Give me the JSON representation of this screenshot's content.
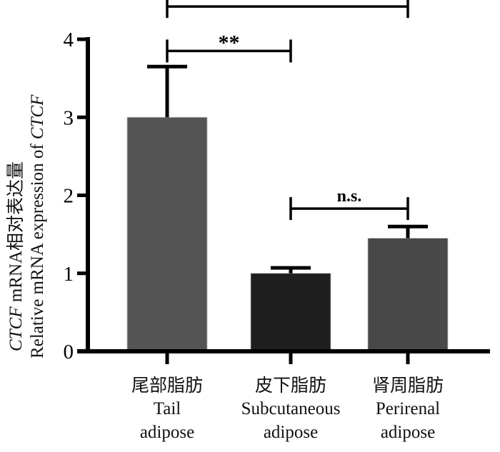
{
  "chart_data": {
    "type": "bar",
    "title": "",
    "ylabel_line1_italic": "CTCF",
    "ylabel_line1_rest": " mRNA相对表达量",
    "ylabel_line2_plain": "Relative mRNA expression of ",
    "ylabel_line2_italic": "CTCF",
    "xlabel": "",
    "ylim": [
      0,
      4
    ],
    "yticks": [
      0,
      1,
      2,
      3,
      4
    ],
    "grid": false,
    "categories": [
      {
        "zh": "尾部脂肪",
        "en1": "Tail",
        "en2": "adipose"
      },
      {
        "zh": "皮下脂肪",
        "en1": "Subcutaneous",
        "en2": "adipose"
      },
      {
        "zh": "肾周脂肪",
        "en1": "Perirenal",
        "en2": "adipose"
      }
    ],
    "values": [
      3.0,
      1.0,
      1.45
    ],
    "error_upper": [
      0.65,
      0.07,
      0.15
    ],
    "bar_colors": [
      "#555555",
      "#1e1e1e",
      "#484848"
    ],
    "significance": [
      {
        "from": 0,
        "to": 2,
        "label": "*",
        "level": 4.42
      },
      {
        "from": 0,
        "to": 1,
        "label": "**",
        "level": 3.85
      },
      {
        "from": 1,
        "to": 2,
        "label": "n.s.",
        "level": 1.83
      }
    ]
  }
}
